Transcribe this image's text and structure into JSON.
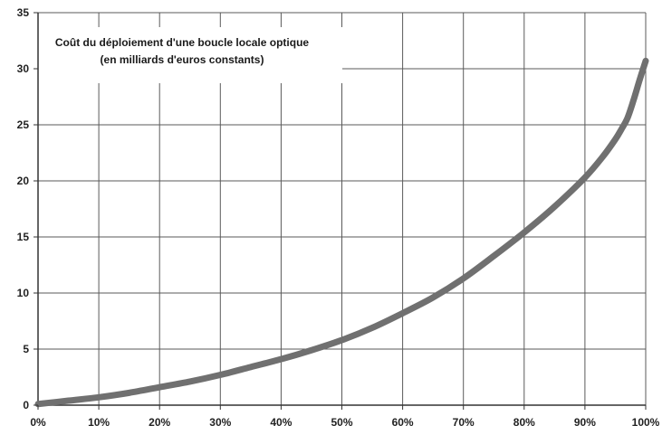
{
  "chart_data": {
    "type": "line",
    "title_lines": [
      "Coût du déploiement d'une boucle locale optique",
      "(en milliards d'euros constants)"
    ],
    "xlabel": "",
    "ylabel": "",
    "x_ticks": [
      "0%",
      "10%",
      "20%",
      "30%",
      "40%",
      "50%",
      "60%",
      "70%",
      "80%",
      "90%",
      "100%"
    ],
    "y_ticks": [
      "0",
      "5",
      "10",
      "15",
      "20",
      "25",
      "30",
      "35"
    ],
    "xlim": [
      0,
      100
    ],
    "ylim": [
      0,
      35
    ],
    "grid": true,
    "legend": "none",
    "series": [
      {
        "color": "#707070",
        "x": [
          0,
          5,
          10,
          15,
          20,
          25,
          30,
          35,
          40,
          45,
          50,
          55,
          60,
          65,
          70,
          75,
          80,
          85,
          90,
          93,
          95,
          96,
          97,
          98,
          99,
          100
        ],
        "y": [
          0.1,
          0.4,
          0.7,
          1.1,
          1.6,
          2.1,
          2.7,
          3.4,
          4.1,
          4.9,
          5.8,
          6.9,
          8.2,
          9.6,
          11.3,
          13.3,
          15.4,
          17.7,
          20.3,
          22.2,
          23.7,
          24.6,
          25.6,
          27.2,
          29.0,
          30.7
        ]
      }
    ]
  }
}
